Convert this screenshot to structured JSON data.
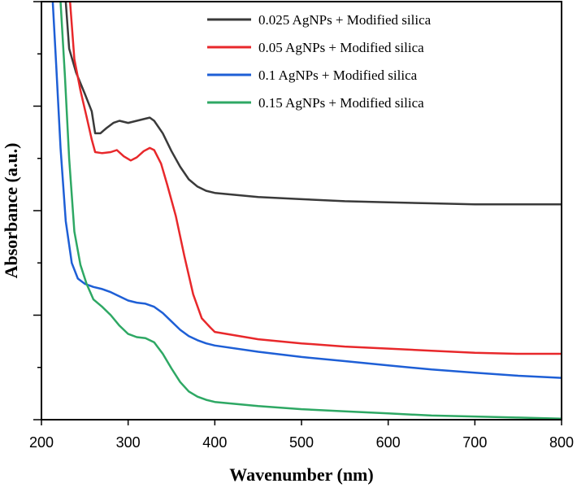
{
  "chart_data": {
    "type": "line",
    "xlabel": "Wavenumber (nm)",
    "ylabel": "Absorbance (a.u.)",
    "xlim": [
      200,
      800
    ],
    "ylim": [
      0,
      4
    ],
    "xticks": [
      200,
      300,
      400,
      500,
      600,
      700,
      800
    ],
    "y_tick_labels_shown": false,
    "grid": false,
    "legend_position": "top-right",
    "series": [
      {
        "name": "0.025 AgNPs + Modified silica",
        "color": "#3a3a3a",
        "points": [
          [
            228,
            4.0
          ],
          [
            232,
            3.55
          ],
          [
            240,
            3.32
          ],
          [
            250,
            3.12
          ],
          [
            258,
            2.95
          ],
          [
            262,
            2.74
          ],
          [
            268,
            2.74
          ],
          [
            275,
            2.79
          ],
          [
            283,
            2.84
          ],
          [
            290,
            2.86
          ],
          [
            300,
            2.84
          ],
          [
            310,
            2.86
          ],
          [
            320,
            2.88
          ],
          [
            325,
            2.89
          ],
          [
            330,
            2.86
          ],
          [
            340,
            2.74
          ],
          [
            350,
            2.57
          ],
          [
            360,
            2.42
          ],
          [
            370,
            2.3
          ],
          [
            380,
            2.23
          ],
          [
            390,
            2.19
          ],
          [
            400,
            2.17
          ],
          [
            450,
            2.13
          ],
          [
            500,
            2.11
          ],
          [
            550,
            2.09
          ],
          [
            600,
            2.08
          ],
          [
            650,
            2.07
          ],
          [
            700,
            2.06
          ],
          [
            750,
            2.06
          ],
          [
            800,
            2.06
          ]
        ]
      },
      {
        "name": "0.05 AgNPs + Modified silica",
        "color": "#e8282b",
        "points": [
          [
            233,
            4.0
          ],
          [
            238,
            3.45
          ],
          [
            245,
            3.15
          ],
          [
            252,
            2.9
          ],
          [
            258,
            2.68
          ],
          [
            262,
            2.56
          ],
          [
            270,
            2.55
          ],
          [
            280,
            2.56
          ],
          [
            287,
            2.58
          ],
          [
            295,
            2.52
          ],
          [
            303,
            2.48
          ],
          [
            310,
            2.51
          ],
          [
            318,
            2.57
          ],
          [
            325,
            2.6
          ],
          [
            330,
            2.58
          ],
          [
            338,
            2.45
          ],
          [
            345,
            2.25
          ],
          [
            355,
            1.95
          ],
          [
            365,
            1.56
          ],
          [
            375,
            1.2
          ],
          [
            385,
            0.97
          ],
          [
            395,
            0.88
          ],
          [
            400,
            0.84
          ],
          [
            450,
            0.77
          ],
          [
            500,
            0.73
          ],
          [
            550,
            0.7
          ],
          [
            600,
            0.68
          ],
          [
            650,
            0.66
          ],
          [
            700,
            0.64
          ],
          [
            750,
            0.63
          ],
          [
            800,
            0.63
          ]
        ]
      },
      {
        "name": "0.1 AgNPs + Modified silica",
        "color": "#1e5fd6",
        "points": [
          [
            213,
            4.0
          ],
          [
            217,
            3.4
          ],
          [
            222,
            2.6
          ],
          [
            228,
            1.9
          ],
          [
            235,
            1.5
          ],
          [
            242,
            1.35
          ],
          [
            250,
            1.3
          ],
          [
            260,
            1.27
          ],
          [
            270,
            1.25
          ],
          [
            280,
            1.22
          ],
          [
            290,
            1.18
          ],
          [
            300,
            1.14
          ],
          [
            310,
            1.12
          ],
          [
            320,
            1.11
          ],
          [
            330,
            1.08
          ],
          [
            340,
            1.02
          ],
          [
            350,
            0.94
          ],
          [
            360,
            0.86
          ],
          [
            370,
            0.8
          ],
          [
            380,
            0.76
          ],
          [
            390,
            0.73
          ],
          [
            400,
            0.71
          ],
          [
            450,
            0.65
          ],
          [
            500,
            0.6
          ],
          [
            550,
            0.56
          ],
          [
            600,
            0.52
          ],
          [
            650,
            0.48
          ],
          [
            700,
            0.45
          ],
          [
            750,
            0.42
          ],
          [
            800,
            0.4
          ]
        ]
      },
      {
        "name": "0.15 AgNPs + Modified silica",
        "color": "#2ea864",
        "points": [
          [
            222,
            4.0
          ],
          [
            227,
            3.3
          ],
          [
            232,
            2.5
          ],
          [
            238,
            1.8
          ],
          [
            245,
            1.48
          ],
          [
            252,
            1.3
          ],
          [
            260,
            1.15
          ],
          [
            270,
            1.08
          ],
          [
            280,
            1.0
          ],
          [
            290,
            0.9
          ],
          [
            300,
            0.82
          ],
          [
            310,
            0.79
          ],
          [
            320,
            0.78
          ],
          [
            330,
            0.74
          ],
          [
            340,
            0.63
          ],
          [
            350,
            0.49
          ],
          [
            360,
            0.36
          ],
          [
            370,
            0.27
          ],
          [
            380,
            0.22
          ],
          [
            390,
            0.19
          ],
          [
            400,
            0.17
          ],
          [
            450,
            0.13
          ],
          [
            500,
            0.1
          ],
          [
            550,
            0.08
          ],
          [
            600,
            0.06
          ],
          [
            650,
            0.04
          ],
          [
            700,
            0.03
          ],
          [
            750,
            0.02
          ],
          [
            800,
            0.01
          ]
        ]
      }
    ]
  }
}
